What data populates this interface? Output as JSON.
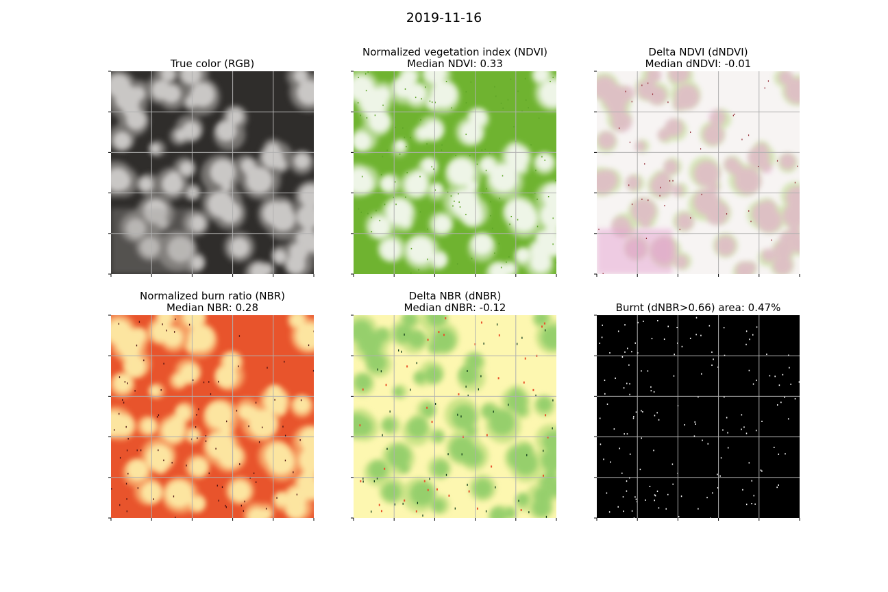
{
  "suptitle": "2019-11-16",
  "panels": [
    {
      "id": "rgb",
      "title_line1": "True color (RGB)",
      "title_line2": "",
      "colormap": "grayscale-rgb"
    },
    {
      "id": "ndvi",
      "title_line1": "Normalized vegetation index (NDVI)",
      "title_line2": "Median NDVI: 0.33",
      "colormap": "white-green"
    },
    {
      "id": "dndvi",
      "title_line1": "Delta NDVI (dNDVI)",
      "title_line2": "Median dNDVI: -0.01",
      "colormap": "pink-white-green"
    },
    {
      "id": "nbr",
      "title_line1": "Normalized burn ratio (NBR)",
      "title_line2": "Median NBR: 0.28",
      "colormap": "yellow-orange-red"
    },
    {
      "id": "dnbr",
      "title_line1": "Delta NBR (dNBR)",
      "title_line2": "Median dNBR: -0.12",
      "colormap": "red-yellow-green"
    },
    {
      "id": "burnt",
      "title_line1": "Burnt (dNBR>0.66) area: 0.47%",
      "title_line2": "",
      "colormap": "black-white"
    }
  ],
  "colors": {
    "grid": "#b0b0b0",
    "rgb_dark": "#2f2d2b",
    "rgb_cloud": "#d8d6d4",
    "ndvi_low": "#f2f7ec",
    "ndvi_high": "#6fb330",
    "dndvi_neg": "#e6a3d2",
    "dndvi_zero": "#f7f4f3",
    "dndvi_pos": "#a8d36a",
    "nbr_low": "#fde9a4",
    "nbr_high": "#e8542c",
    "dnbr_neg": "#e8532c",
    "dnbr_zero": "#fdf7b0",
    "dnbr_pos": "#6cbf57",
    "burnt_bg": "#000000",
    "burnt_px": "#ffffff"
  }
}
